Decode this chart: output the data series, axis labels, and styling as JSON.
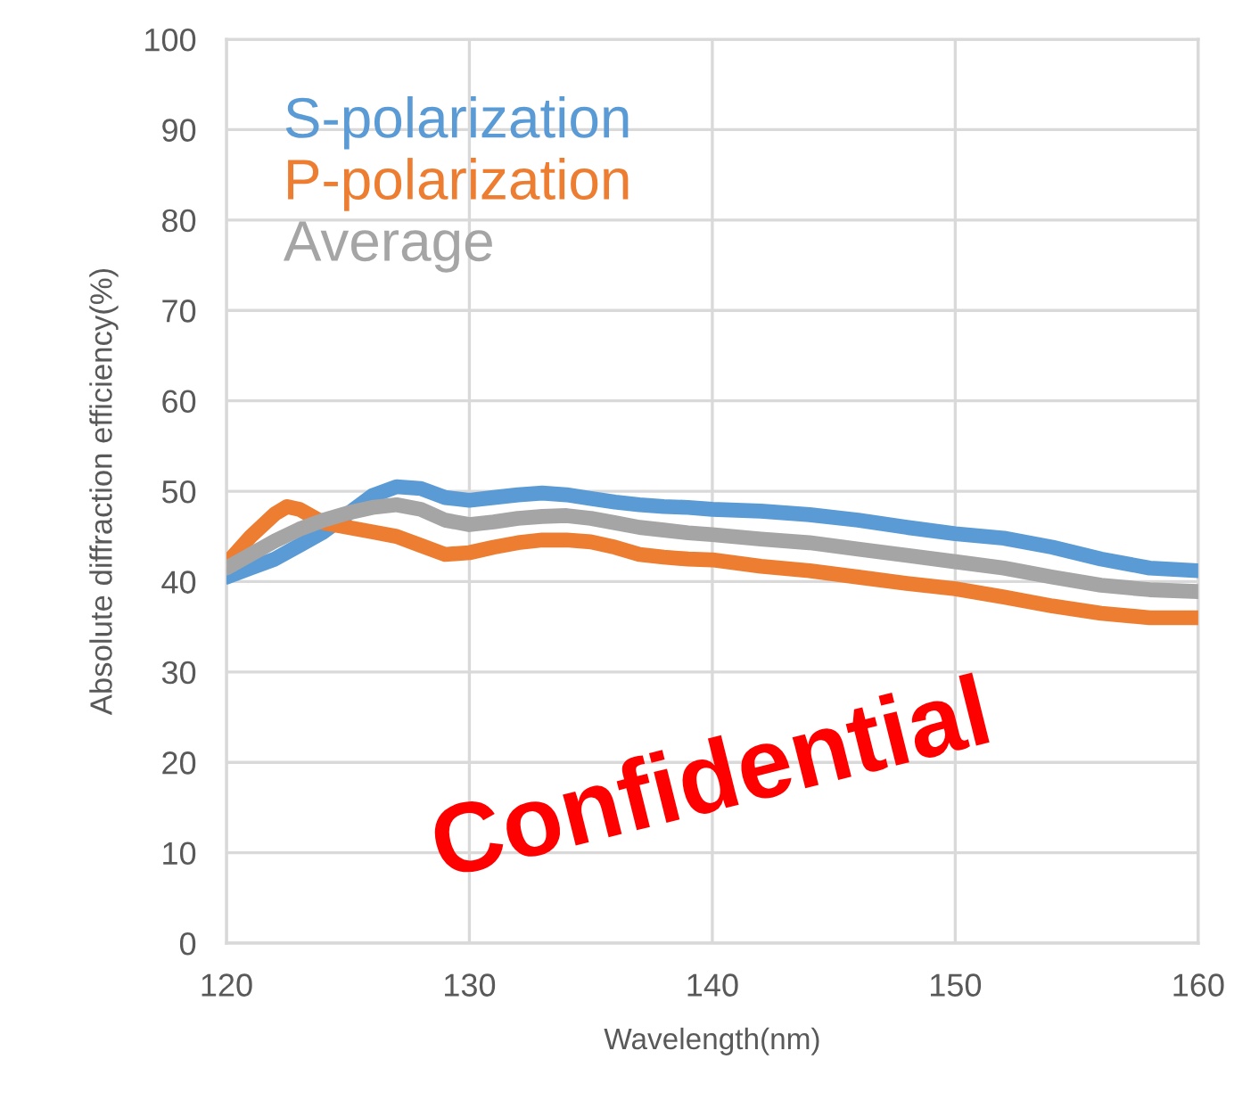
{
  "chart_data": {
    "type": "line",
    "xlabel": "Wavelength(nm)",
    "ylabel": "Absolute diffraction efficiency(%)",
    "xlim": [
      120,
      160
    ],
    "ylim": [
      0,
      100
    ],
    "xticks": [
      120,
      130,
      140,
      150,
      160
    ],
    "yticks": [
      0,
      10,
      20,
      30,
      40,
      50,
      60,
      70,
      80,
      90,
      100
    ],
    "grid": true,
    "legend": "top left",
    "line_style": "solid",
    "annotations": [
      "Confidential"
    ],
    "series": [
      {
        "name": "S-polarization",
        "color": "#5b9bd5",
        "x": [
          120,
          121,
          122,
          123,
          124,
          125,
          126,
          127,
          128,
          129,
          130,
          131,
          132,
          133,
          134,
          135,
          136,
          137,
          138,
          139,
          140,
          142,
          144,
          146,
          148,
          150,
          152,
          154,
          156,
          158,
          160
        ],
        "values": [
          40.5,
          41.5,
          42.5,
          44,
          45.5,
          47.5,
          49.5,
          50.5,
          50.3,
          49.3,
          49,
          49.3,
          49.6,
          49.8,
          49.6,
          49.2,
          48.8,
          48.5,
          48.3,
          48.2,
          48,
          47.8,
          47.4,
          46.8,
          46,
          45.3,
          44.8,
          43.8,
          42.5,
          41.5,
          41.2
        ]
      },
      {
        "name": "P-polarization",
        "color": "#ed7d31",
        "x": [
          120,
          121,
          122,
          122.5,
          123,
          124,
          125,
          126,
          127,
          128,
          129,
          130,
          131,
          132,
          133,
          134,
          135,
          136,
          137,
          138,
          139,
          140,
          142,
          144,
          146,
          148,
          150,
          152,
          154,
          156,
          158,
          160
        ],
        "values": [
          42,
          45,
          47.5,
          48.3,
          48,
          46.5,
          46,
          45.5,
          45,
          44,
          43,
          43.2,
          43.8,
          44.3,
          44.6,
          44.6,
          44.4,
          43.8,
          43,
          42.7,
          42.5,
          42.4,
          41.7,
          41.2,
          40.5,
          39.8,
          39.2,
          38.3,
          37.3,
          36.5,
          36,
          36
        ]
      },
      {
        "name": "Average",
        "color": "#a5a5a5",
        "x": [
          120,
          121,
          122,
          123,
          124,
          125,
          126,
          127,
          128,
          129,
          130,
          131,
          132,
          133,
          134,
          135,
          136,
          137,
          138,
          139,
          140,
          142,
          144,
          146,
          148,
          150,
          152,
          154,
          156,
          158,
          160
        ],
        "values": [
          41.5,
          43,
          44.5,
          45.8,
          46.8,
          47.6,
          48.2,
          48.5,
          48,
          46.8,
          46.3,
          46.6,
          47,
          47.2,
          47.3,
          47,
          46.5,
          46,
          45.7,
          45.4,
          45.2,
          44.7,
          44.3,
          43.6,
          42.9,
          42.2,
          41.5,
          40.5,
          39.6,
          39.1,
          38.9
        ]
      }
    ]
  }
}
